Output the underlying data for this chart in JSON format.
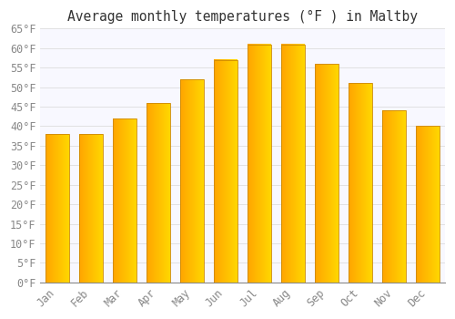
{
  "title": "Average monthly temperatures (°F ) in Maltby",
  "months": [
    "Jan",
    "Feb",
    "Mar",
    "Apr",
    "May",
    "Jun",
    "Jul",
    "Aug",
    "Sep",
    "Oct",
    "Nov",
    "Dec"
  ],
  "values": [
    38,
    38,
    42,
    46,
    52,
    57,
    61,
    61,
    56,
    51,
    44,
    40
  ],
  "bar_color_left": "#FFA500",
  "bar_color_right": "#FFD700",
  "bar_color_mid": "#FFBB00",
  "bar_edge_color": "#CC8800",
  "background_color": "#FFFFFF",
  "plot_bg_color": "#F8F8FF",
  "grid_color": "#DDDDDD",
  "tick_label_color": "#888888",
  "title_color": "#333333",
  "ylim": [
    0,
    65
  ],
  "yticks": [
    0,
    5,
    10,
    15,
    20,
    25,
    30,
    35,
    40,
    45,
    50,
    55,
    60,
    65
  ],
  "title_fontsize": 10.5,
  "tick_fontsize": 8.5
}
